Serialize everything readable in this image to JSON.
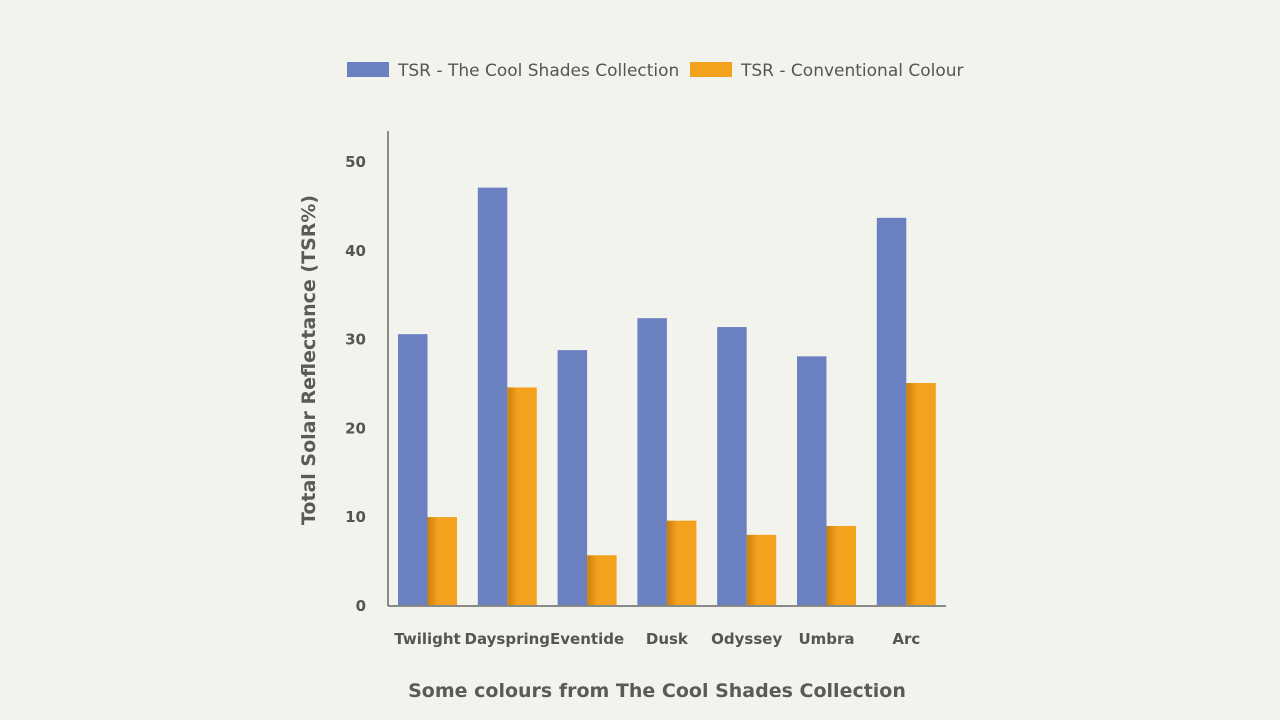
{
  "chart_data": {
    "type": "bar",
    "title": "",
    "xlabel": "Some colours from The Cool Shades Collection",
    "ylabel": "Total Solar Reflectance (TSR%)",
    "ylim": [
      0,
      50
    ],
    "yticks": [
      0,
      10,
      20,
      30,
      40,
      50
    ],
    "grid": false,
    "legend_position": "top",
    "categories": [
      "Twilight",
      "Dayspring",
      "Eventide",
      "Dusk",
      "Odyssey",
      "Umbra",
      "Arc"
    ],
    "series": [
      {
        "name": "TSR - The Cool Shades Collection",
        "color": "#6a80c1",
        "values": [
          30.5,
          47.0,
          28.7,
          32.3,
          31.3,
          28.0,
          43.6
        ]
      },
      {
        "name": "TSR - Conventional Colour",
        "color": "#f4a11e",
        "values": [
          9.9,
          24.5,
          5.6,
          9.5,
          7.9,
          8.9,
          25.0
        ]
      }
    ]
  }
}
